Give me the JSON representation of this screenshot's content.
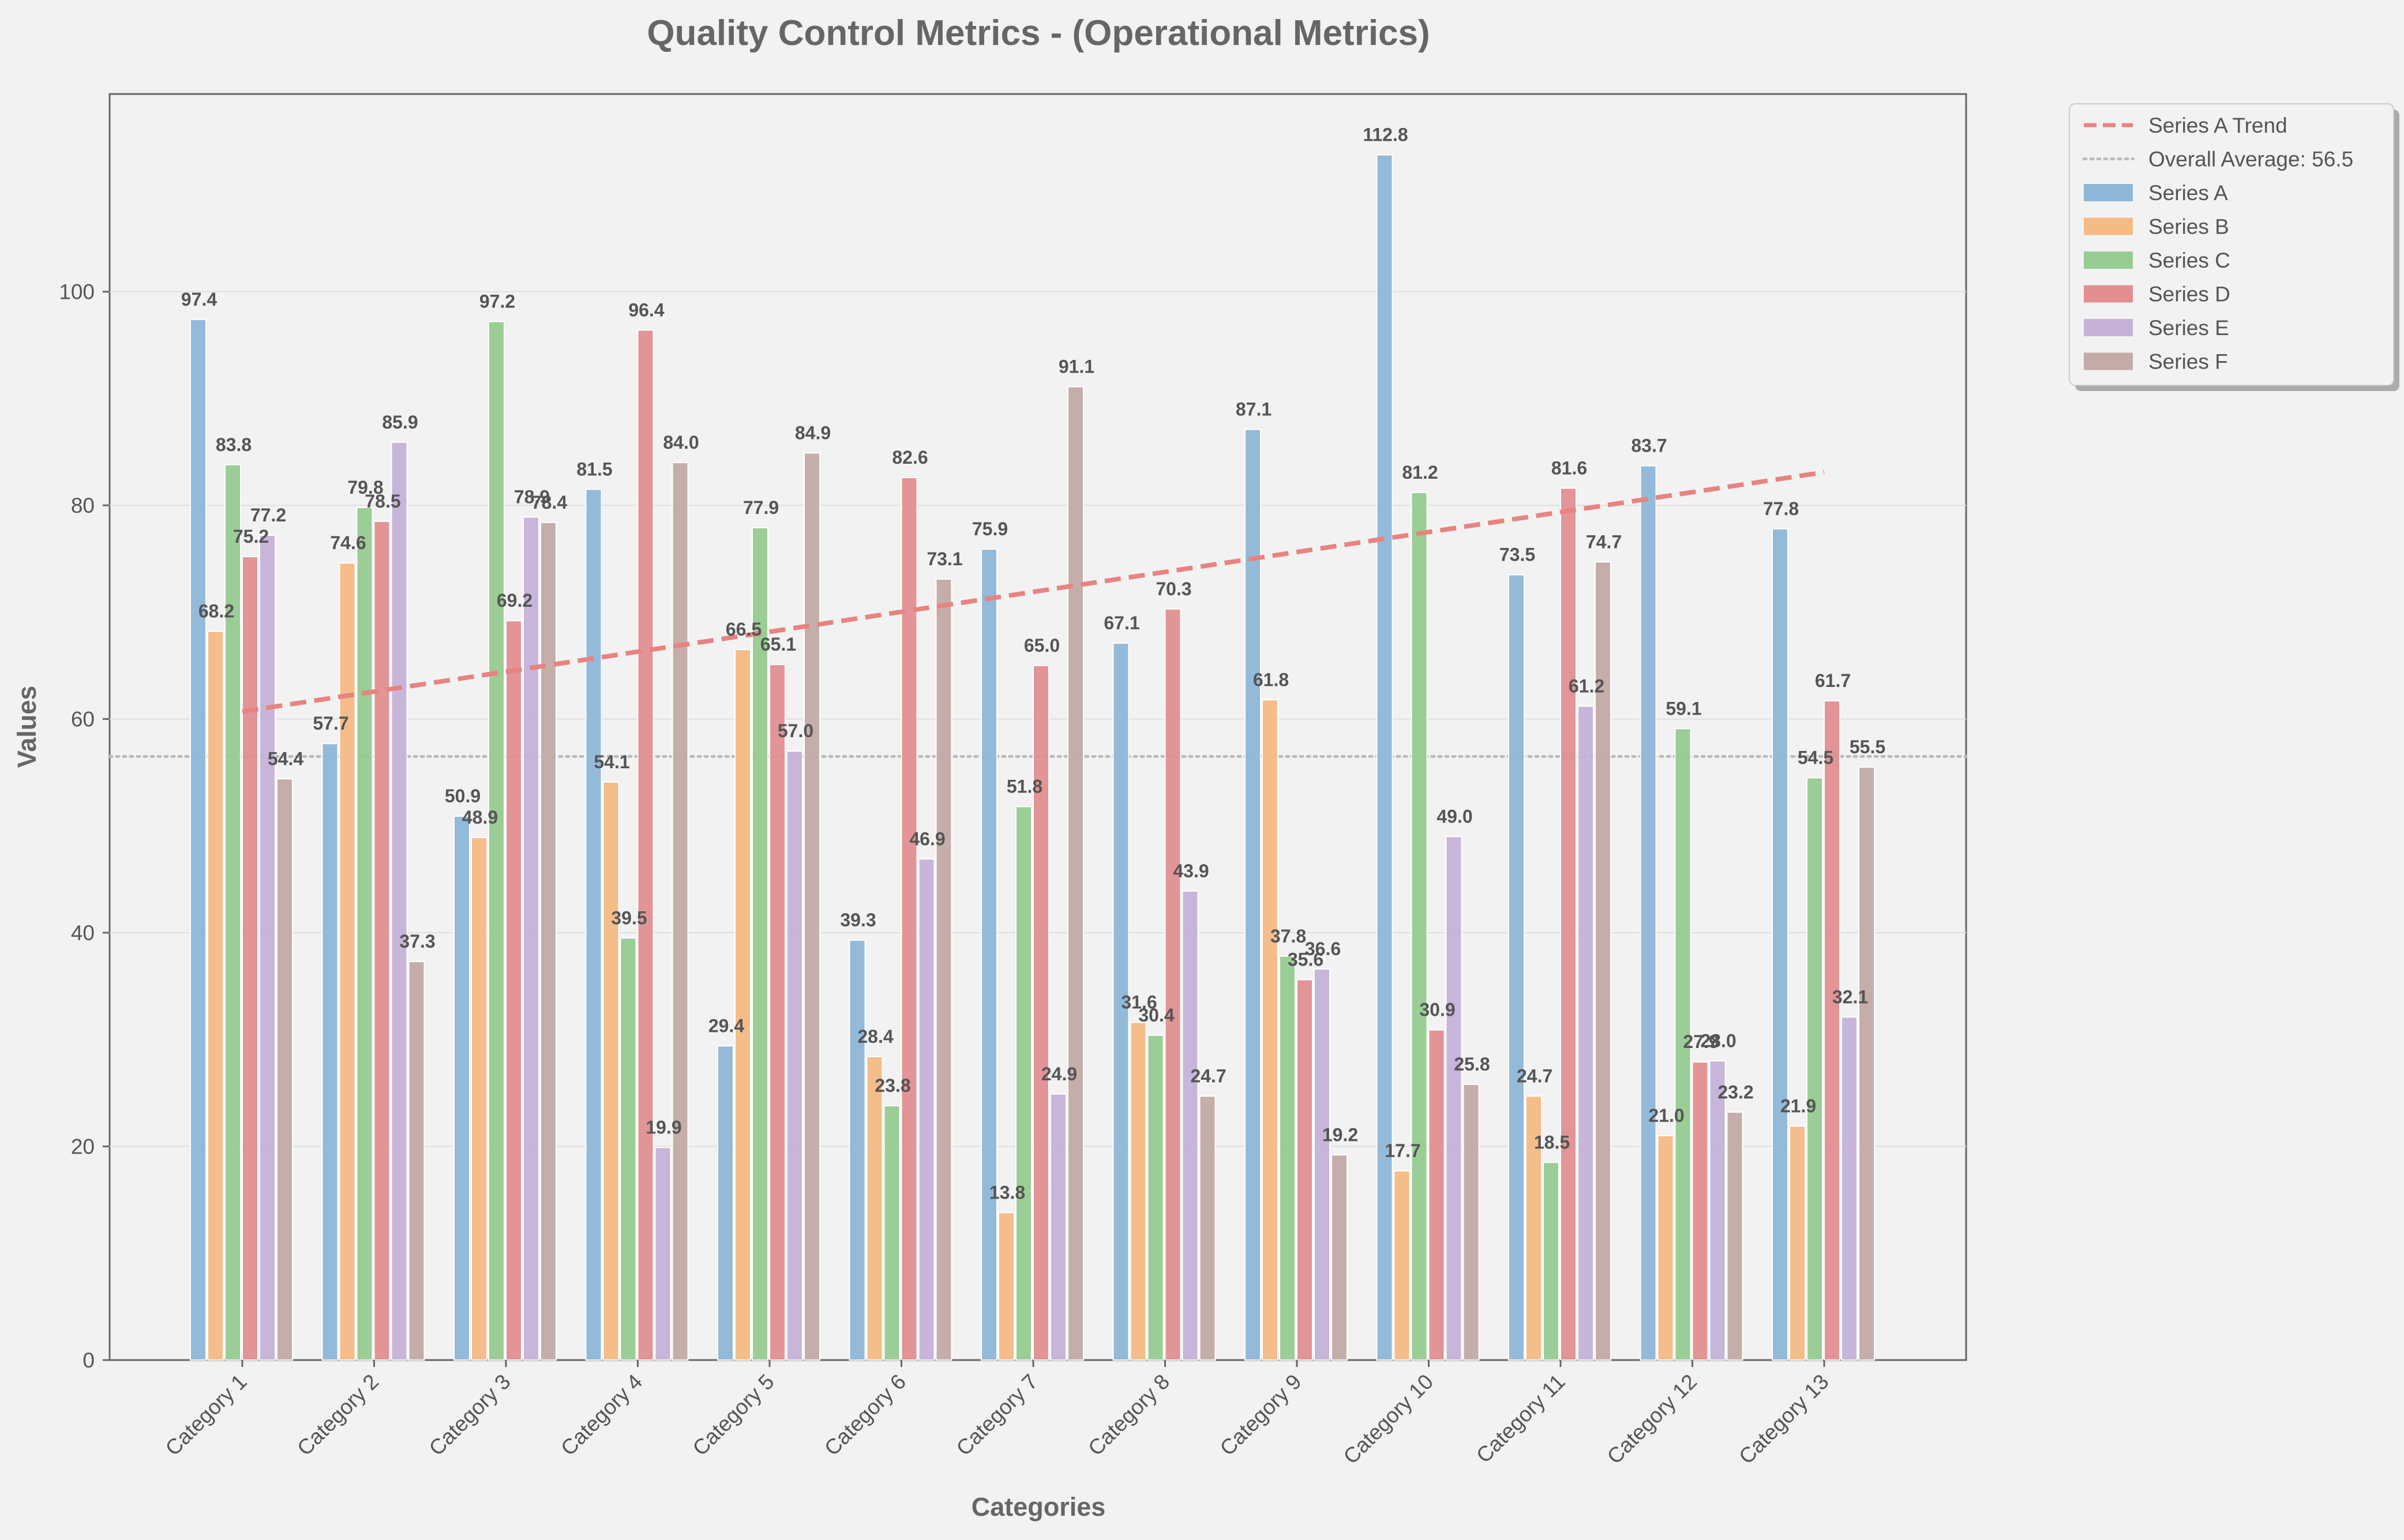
{
  "chart_data": {
    "type": "bar",
    "title": "Quality Control Metrics - (Operational Metrics)",
    "xlabel": "Categories",
    "ylabel": "Values",
    "ylim": [
      0,
      118.5
    ],
    "yticks": [
      0,
      20,
      40,
      60,
      80,
      100
    ],
    "grid": true,
    "legend_position": "outside-top-right",
    "categories": [
      "Category 1",
      "Category 2",
      "Category 3",
      "Category 4",
      "Category 5",
      "Category 6",
      "Category 7",
      "Category 8",
      "Category 9",
      "Category 10",
      "Category 11",
      "Category 12",
      "Category 13"
    ],
    "series": [
      {
        "name": "Series A",
        "color": "#8fb8d8",
        "values": [
          97.4,
          57.7,
          50.9,
          81.5,
          29.4,
          39.3,
          75.9,
          67.1,
          87.1,
          112.8,
          73.5,
          83.7,
          77.8
        ]
      },
      {
        "name": "Series B",
        "color": "#f5bb85",
        "values": [
          68.2,
          74.6,
          48.9,
          54.1,
          66.5,
          28.4,
          13.8,
          31.6,
          61.8,
          17.7,
          24.7,
          21.0,
          21.9
        ]
      },
      {
        "name": "Series C",
        "color": "#97cc92",
        "values": [
          83.8,
          79.8,
          97.2,
          39.5,
          77.9,
          23.8,
          51.8,
          30.4,
          37.8,
          81.2,
          18.5,
          59.1,
          54.5
        ]
      },
      {
        "name": "Series D",
        "color": "#e38f92",
        "values": [
          75.2,
          78.5,
          69.2,
          96.4,
          65.1,
          82.6,
          65.0,
          70.3,
          35.6,
          30.9,
          81.6,
          27.9,
          61.7
        ]
      },
      {
        "name": "Series E",
        "color": "#c6b2d9",
        "values": [
          77.2,
          85.9,
          78.9,
          19.9,
          57.0,
          46.9,
          24.9,
          43.9,
          36.6,
          49.0,
          61.2,
          28.0,
          32.1
        ]
      },
      {
        "name": "Series F",
        "color": "#c3aba7",
        "values": [
          54.4,
          37.3,
          78.4,
          84.0,
          84.9,
          73.1,
          91.1,
          24.7,
          19.2,
          25.8,
          74.7,
          23.2,
          55.5
        ]
      }
    ],
    "trend": {
      "name": "Series A Trend",
      "color": "#e88380",
      "start": 60.7,
      "end": 83.1
    },
    "average": {
      "name": "Overall Average: 56.5",
      "value": 56.5,
      "color": "#bbbbbb"
    }
  }
}
